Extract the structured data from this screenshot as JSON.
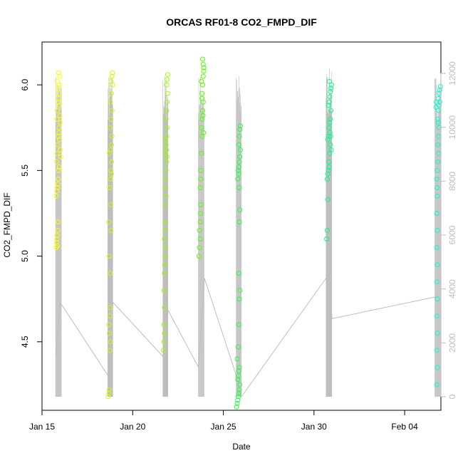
{
  "chart_data": {
    "type": "scatter",
    "title": "ORCAS RF01-8 CO2_FMPD_DIF",
    "xlabel": "Date",
    "ylabel": "CO2_FMPD_DIF",
    "xlim": [
      "2016-01-15",
      "2016-02-06"
    ],
    "ylim": [
      4.1,
      6.25
    ],
    "y2lim": [
      0,
      13000
    ],
    "x_ticks": [
      {
        "date": "2016-01-15",
        "label": "Jan 15"
      },
      {
        "date": "2016-01-20",
        "label": "Jan 20"
      },
      {
        "date": "2016-01-25",
        "label": "Jan 25"
      },
      {
        "date": "2016-01-30",
        "label": "Jan 30"
      },
      {
        "date": "2016-02-04",
        "label": "Feb 04"
      }
    ],
    "y_ticks": [
      {
        "value": 4.5,
        "label": "4.5"
      },
      {
        "value": 5.0,
        "label": "5.0"
      },
      {
        "value": 5.5,
        "label": "5.5"
      },
      {
        "value": 6.0,
        "label": "6.0"
      }
    ],
    "y2_ticks": [
      {
        "value": 0,
        "label": "0"
      },
      {
        "value": 2000,
        "label": "2000"
      },
      {
        "value": 4000,
        "label": "4000"
      },
      {
        "value": 6000,
        "label": "6000"
      },
      {
        "value": 8000,
        "label": "8000"
      },
      {
        "value": 10000,
        "label": "10000"
      },
      {
        "value": 12000,
        "label": "12000"
      }
    ],
    "grid": false,
    "colors": {
      "altitude_line": "#bebebe",
      "axis": "#000000",
      "right_axis": "#bebebe"
    },
    "flights": [
      {
        "color": "#ffff00",
        "start": "2016-01-15T18:00",
        "end": "2016-01-16T02:00",
        "ymin": 5.03,
        "ymax": 6.08,
        "peak_alt": 12000,
        "points": [
          [
            0.1,
            5.05
          ],
          [
            0.15,
            5.08
          ],
          [
            0.2,
            5.1
          ],
          [
            0.25,
            5.12
          ],
          [
            0.3,
            5.06
          ],
          [
            0.35,
            5.15
          ],
          [
            0.4,
            5.2
          ],
          [
            0.1,
            5.35
          ],
          [
            0.2,
            5.38
          ],
          [
            0.3,
            5.4
          ],
          [
            0.4,
            5.42
          ],
          [
            0.5,
            5.5
          ],
          [
            0.15,
            5.55
          ],
          [
            0.25,
            5.6
          ],
          [
            0.35,
            5.65
          ],
          [
            0.45,
            5.7
          ],
          [
            0.55,
            5.75
          ],
          [
            0.2,
            5.8
          ],
          [
            0.3,
            5.85
          ],
          [
            0.4,
            5.9
          ],
          [
            0.5,
            5.95
          ],
          [
            0.6,
            6.0
          ],
          [
            0.7,
            6.05
          ],
          [
            0.3,
            6.02
          ],
          [
            0.4,
            5.98
          ],
          [
            0.5,
            5.92
          ],
          [
            0.6,
            5.88
          ],
          [
            0.7,
            5.82
          ],
          [
            0.8,
            5.78
          ],
          [
            0.55,
            5.72
          ],
          [
            0.65,
            5.68
          ],
          [
            0.75,
            5.62
          ],
          [
            0.85,
            5.58
          ],
          [
            0.6,
            5.52
          ],
          [
            0.45,
            5.45
          ],
          [
            0.5,
            6.07
          ]
        ]
      },
      {
        "color": "#ccff00",
        "start": "2016-01-18T15:00",
        "end": "2016-01-18T22:00",
        "ymin": 4.17,
        "ymax": 6.08,
        "peak_alt": 12000,
        "points": [
          [
            0.1,
            4.18
          ],
          [
            0.2,
            4.2
          ],
          [
            0.3,
            4.22
          ],
          [
            0.4,
            4.45
          ],
          [
            0.5,
            4.5
          ],
          [
            0.3,
            4.55
          ],
          [
            0.2,
            4.6
          ],
          [
            0.4,
            4.65
          ],
          [
            0.5,
            4.9
          ],
          [
            0.3,
            5.0
          ],
          [
            0.6,
            5.15
          ],
          [
            0.2,
            5.2
          ],
          [
            0.4,
            5.4
          ],
          [
            0.5,
            5.45
          ],
          [
            0.6,
            5.5
          ],
          [
            0.7,
            5.55
          ],
          [
            0.3,
            5.6
          ],
          [
            0.5,
            5.62
          ],
          [
            0.7,
            5.65
          ],
          [
            0.8,
            5.7
          ],
          [
            0.4,
            5.75
          ],
          [
            0.6,
            5.8
          ],
          [
            0.8,
            5.85
          ],
          [
            0.5,
            5.9
          ],
          [
            0.7,
            5.95
          ],
          [
            0.9,
            6.0
          ],
          [
            0.6,
            6.02
          ],
          [
            0.8,
            6.05
          ],
          [
            0.9,
            6.07
          ],
          [
            0.7,
            5.48
          ],
          [
            0.55,
            5.3
          ],
          [
            0.45,
            4.7
          ]
        ]
      },
      {
        "color": "#99ff00",
        "start": "2016-01-21T16:00",
        "end": "2016-01-21T23:00",
        "ymin": 4.45,
        "ymax": 6.07,
        "peak_alt": 12000,
        "points": [
          [
            0.1,
            4.45
          ],
          [
            0.2,
            4.5
          ],
          [
            0.3,
            4.55
          ],
          [
            0.2,
            4.6
          ],
          [
            0.3,
            4.7
          ],
          [
            0.2,
            4.8
          ],
          [
            0.3,
            4.9
          ],
          [
            0.4,
            5.0
          ],
          [
            0.5,
            5.05
          ],
          [
            0.3,
            5.1
          ],
          [
            0.4,
            5.2
          ],
          [
            0.5,
            5.3
          ],
          [
            0.6,
            5.35
          ],
          [
            0.4,
            5.4
          ],
          [
            0.5,
            5.45
          ],
          [
            0.6,
            5.5
          ],
          [
            0.7,
            5.55
          ],
          [
            0.5,
            5.6
          ],
          [
            0.6,
            5.65
          ],
          [
            0.7,
            5.7
          ],
          [
            0.8,
            5.75
          ],
          [
            0.6,
            5.8
          ],
          [
            0.7,
            5.85
          ],
          [
            0.8,
            5.9
          ],
          [
            0.9,
            5.95
          ],
          [
            0.7,
            6.0
          ],
          [
            0.8,
            6.03
          ],
          [
            0.9,
            6.06
          ],
          [
            0.55,
            5.68
          ],
          [
            0.65,
            5.62
          ],
          [
            0.75,
            5.58
          ],
          [
            0.45,
            5.15
          ],
          [
            0.35,
            4.95
          ]
        ]
      },
      {
        "color": "#55ff00",
        "start": "2016-01-23T15:00",
        "end": "2016-01-23T23:00",
        "ymin": 4.98,
        "ymax": 6.17,
        "peak_alt": 12000,
        "points": [
          [
            0.1,
            5.0
          ],
          [
            0.2,
            5.05
          ],
          [
            0.3,
            5.1
          ],
          [
            0.2,
            5.15
          ],
          [
            0.3,
            5.2
          ],
          [
            0.4,
            5.3
          ],
          [
            0.3,
            5.4
          ],
          [
            0.4,
            5.5
          ],
          [
            0.5,
            5.6
          ],
          [
            0.6,
            5.7
          ],
          [
            0.5,
            5.75
          ],
          [
            0.6,
            5.8
          ],
          [
            0.7,
            5.85
          ],
          [
            0.8,
            5.9
          ],
          [
            0.6,
            5.95
          ],
          [
            0.7,
            6.0
          ],
          [
            0.8,
            6.05
          ],
          [
            0.9,
            6.1
          ],
          [
            0.7,
            6.15
          ],
          [
            0.8,
            6.12
          ],
          [
            0.9,
            6.08
          ],
          [
            0.5,
            6.02
          ],
          [
            0.6,
            5.92
          ],
          [
            0.75,
            5.82
          ],
          [
            0.85,
            5.72
          ],
          [
            0.4,
            5.45
          ],
          [
            0.35,
            5.25
          ]
        ]
      },
      {
        "color": "#22ff44",
        "start": "2016-01-25T17:00",
        "end": "2016-01-26T00:00",
        "ymin": 4.12,
        "ymax": 5.77,
        "peak_alt": 12000,
        "points": [
          [
            0.1,
            4.12
          ],
          [
            0.2,
            4.14
          ],
          [
            0.3,
            4.16
          ],
          [
            0.4,
            4.18
          ],
          [
            0.5,
            4.2
          ],
          [
            0.6,
            4.22
          ],
          [
            0.7,
            4.25
          ],
          [
            0.3,
            4.28
          ],
          [
            0.4,
            4.3
          ],
          [
            0.5,
            4.33
          ],
          [
            0.6,
            4.35
          ],
          [
            0.2,
            4.4
          ],
          [
            0.4,
            4.47
          ],
          [
            0.5,
            4.6
          ],
          [
            0.6,
            4.75
          ],
          [
            0.7,
            4.8
          ],
          [
            0.5,
            4.9
          ],
          [
            0.6,
            5.2
          ],
          [
            0.7,
            5.27
          ],
          [
            0.3,
            5.45
          ],
          [
            0.4,
            5.5
          ],
          [
            0.5,
            5.52
          ],
          [
            0.6,
            5.55
          ],
          [
            0.7,
            5.58
          ],
          [
            0.8,
            5.62
          ],
          [
            0.5,
            5.65
          ],
          [
            0.6,
            5.7
          ],
          [
            0.7,
            5.74
          ],
          [
            0.8,
            5.76
          ],
          [
            0.45,
            5.48
          ],
          [
            0.55,
            5.4
          ]
        ]
      },
      {
        "color": "#00ff88",
        "start": "2016-01-30T16:00",
        "end": "2016-01-31T00:00",
        "ymin": 5.05,
        "ymax": 6.03,
        "peak_alt": 12200,
        "points": [
          [
            0.1,
            5.1
          ],
          [
            0.2,
            5.15
          ],
          [
            0.3,
            5.33
          ],
          [
            0.2,
            5.45
          ],
          [
            0.3,
            5.48
          ],
          [
            0.4,
            5.5
          ],
          [
            0.5,
            5.52
          ],
          [
            0.6,
            5.6
          ],
          [
            0.7,
            5.65
          ],
          [
            0.3,
            5.68
          ],
          [
            0.4,
            5.7
          ],
          [
            0.5,
            5.75
          ],
          [
            0.6,
            5.78
          ],
          [
            0.7,
            5.8
          ],
          [
            0.8,
            5.85
          ],
          [
            0.4,
            5.88
          ],
          [
            0.5,
            5.9
          ],
          [
            0.6,
            5.93
          ],
          [
            0.7,
            5.96
          ],
          [
            0.8,
            5.98
          ],
          [
            0.9,
            6.0
          ],
          [
            0.55,
            6.02
          ],
          [
            0.65,
            5.72
          ],
          [
            0.75,
            5.7
          ],
          [
            0.85,
            5.62
          ],
          [
            0.45,
            5.55
          ]
        ]
      },
      {
        "color": "#00ffcc",
        "start": "2016-02-05T16:00",
        "end": "2016-02-06T00:00",
        "ymin": 4.2,
        "ymax": 6.0,
        "peak_alt": 12000,
        "points": [
          [
            0.3,
            4.25
          ],
          [
            0.4,
            4.35
          ],
          [
            0.3,
            4.45
          ],
          [
            0.4,
            4.55
          ],
          [
            0.3,
            4.65
          ],
          [
            0.4,
            4.75
          ],
          [
            0.3,
            4.85
          ],
          [
            0.4,
            4.95
          ],
          [
            0.3,
            5.05
          ],
          [
            0.4,
            5.15
          ],
          [
            0.3,
            5.25
          ],
          [
            0.4,
            5.35
          ],
          [
            0.3,
            5.45
          ],
          [
            0.4,
            5.5
          ],
          [
            0.5,
            5.55
          ],
          [
            0.6,
            5.6
          ],
          [
            0.5,
            5.65
          ],
          [
            0.6,
            5.7
          ],
          [
            0.7,
            5.75
          ],
          [
            0.5,
            5.8
          ],
          [
            0.6,
            5.85
          ],
          [
            0.7,
            5.88
          ],
          [
            0.8,
            5.9
          ],
          [
            0.6,
            5.92
          ],
          [
            0.7,
            5.95
          ],
          [
            0.8,
            5.97
          ],
          [
            0.9,
            5.99
          ],
          [
            0.2,
            5.87
          ],
          [
            0.25,
            5.9
          ],
          [
            0.55,
            5.78
          ],
          [
            0.35,
            5.4
          ]
        ]
      }
    ],
    "altitude_line": [
      [
        "2016-01-15T18:00",
        1500
      ],
      [
        "2016-01-16T00:00",
        3500
      ],
      [
        "2016-01-18T15:00",
        800
      ],
      [
        "2016-01-18T22:00",
        3500
      ],
      [
        "2016-01-21T16:00",
        1500
      ],
      [
        "2016-01-21T23:00",
        3200
      ],
      [
        "2016-01-23T15:00",
        1100
      ],
      [
        "2016-01-23T23:00",
        4400
      ],
      [
        "2016-01-25T17:00",
        800
      ],
      [
        "2016-01-26T00:00",
        0
      ],
      [
        "2016-01-30T16:00",
        4400
      ],
      [
        "2016-01-31T00:00",
        2900
      ],
      [
        "2016-02-05T16:00",
        3700
      ],
      [
        "2016-02-06T00:00",
        3900
      ]
    ]
  }
}
